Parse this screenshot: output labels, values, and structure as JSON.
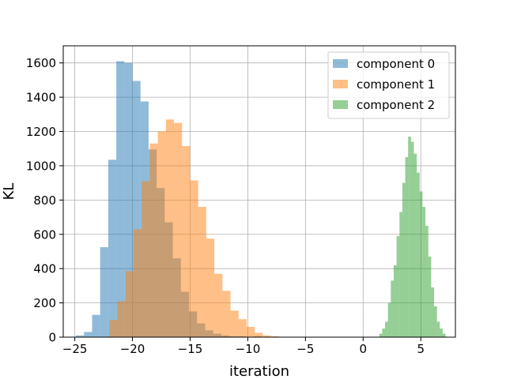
{
  "chart_data": {
    "type": "histogram",
    "title": "",
    "xlabel": "iteration",
    "ylabel": "KL",
    "xlim": [
      -26,
      8
    ],
    "ylim": [
      0,
      1700
    ],
    "xticks": [
      -25,
      -20,
      -15,
      -10,
      -5,
      0,
      5
    ],
    "xtick_labels": [
      "−25",
      "−20",
      "−15",
      "−10",
      "−5",
      "0",
      "5"
    ],
    "yticks": [
      0,
      200,
      400,
      600,
      800,
      1000,
      1200,
      1400,
      1600
    ],
    "ytick_labels": [
      "0",
      "200",
      "400",
      "600",
      "800",
      "1000",
      "1200",
      "1400",
      "1600"
    ],
    "grid": true,
    "legend_position": "upper right",
    "bar_alpha": 0.5,
    "series": [
      {
        "name": "component 0",
        "color": "#1f77b4",
        "bin_start": -24.9,
        "bin_width": 0.7,
        "counts": [
          10,
          30,
          130,
          525,
          1035,
          1610,
          1600,
          1495,
          1375,
          1095,
          870,
          670,
          460,
          265,
          150,
          80,
          40,
          20,
          10,
          5,
          5,
          0,
          5
        ]
      },
      {
        "name": "component 1",
        "color": "#ff7f0e",
        "bin_start": -22.0,
        "bin_width": 0.7,
        "counts": [
          100,
          210,
          385,
          630,
          910,
          1130,
          1200,
          1270,
          1250,
          1115,
          915,
          760,
          575,
          370,
          270,
          155,
          105,
          60,
          25,
          10,
          5
        ]
      },
      {
        "name": "component 2",
        "color": "#2ca02c",
        "bin_start": 1.4,
        "bin_width": 0.25,
        "counts": [
          20,
          50,
          90,
          200,
          330,
          420,
          590,
          730,
          900,
          1050,
          1170,
          1140,
          1070,
          960,
          850,
          760,
          650,
          470,
          290,
          180,
          90,
          50,
          20
        ]
      }
    ]
  }
}
